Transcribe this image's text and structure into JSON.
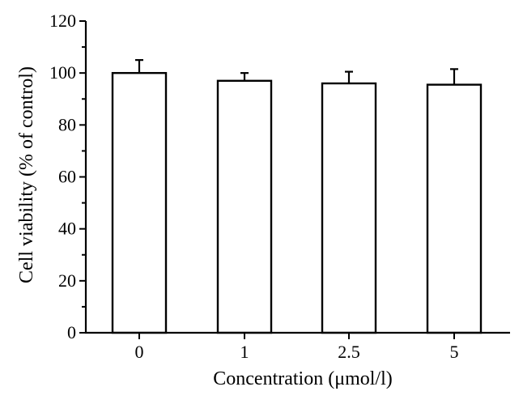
{
  "chart_data": {
    "type": "bar",
    "title": "",
    "xlabel": "Concentration (μmol/l)",
    "ylabel": "Cell viability (% of control)",
    "categories": [
      "0",
      "1",
      "2.5",
      "5"
    ],
    "values": [
      100,
      97,
      96,
      95.5
    ],
    "errors": [
      5,
      3,
      4.5,
      6
    ],
    "ylim": [
      0,
      120
    ],
    "yticks": [
      0,
      20,
      40,
      60,
      80,
      100,
      120
    ],
    "grid": false,
    "legend": "none"
  }
}
